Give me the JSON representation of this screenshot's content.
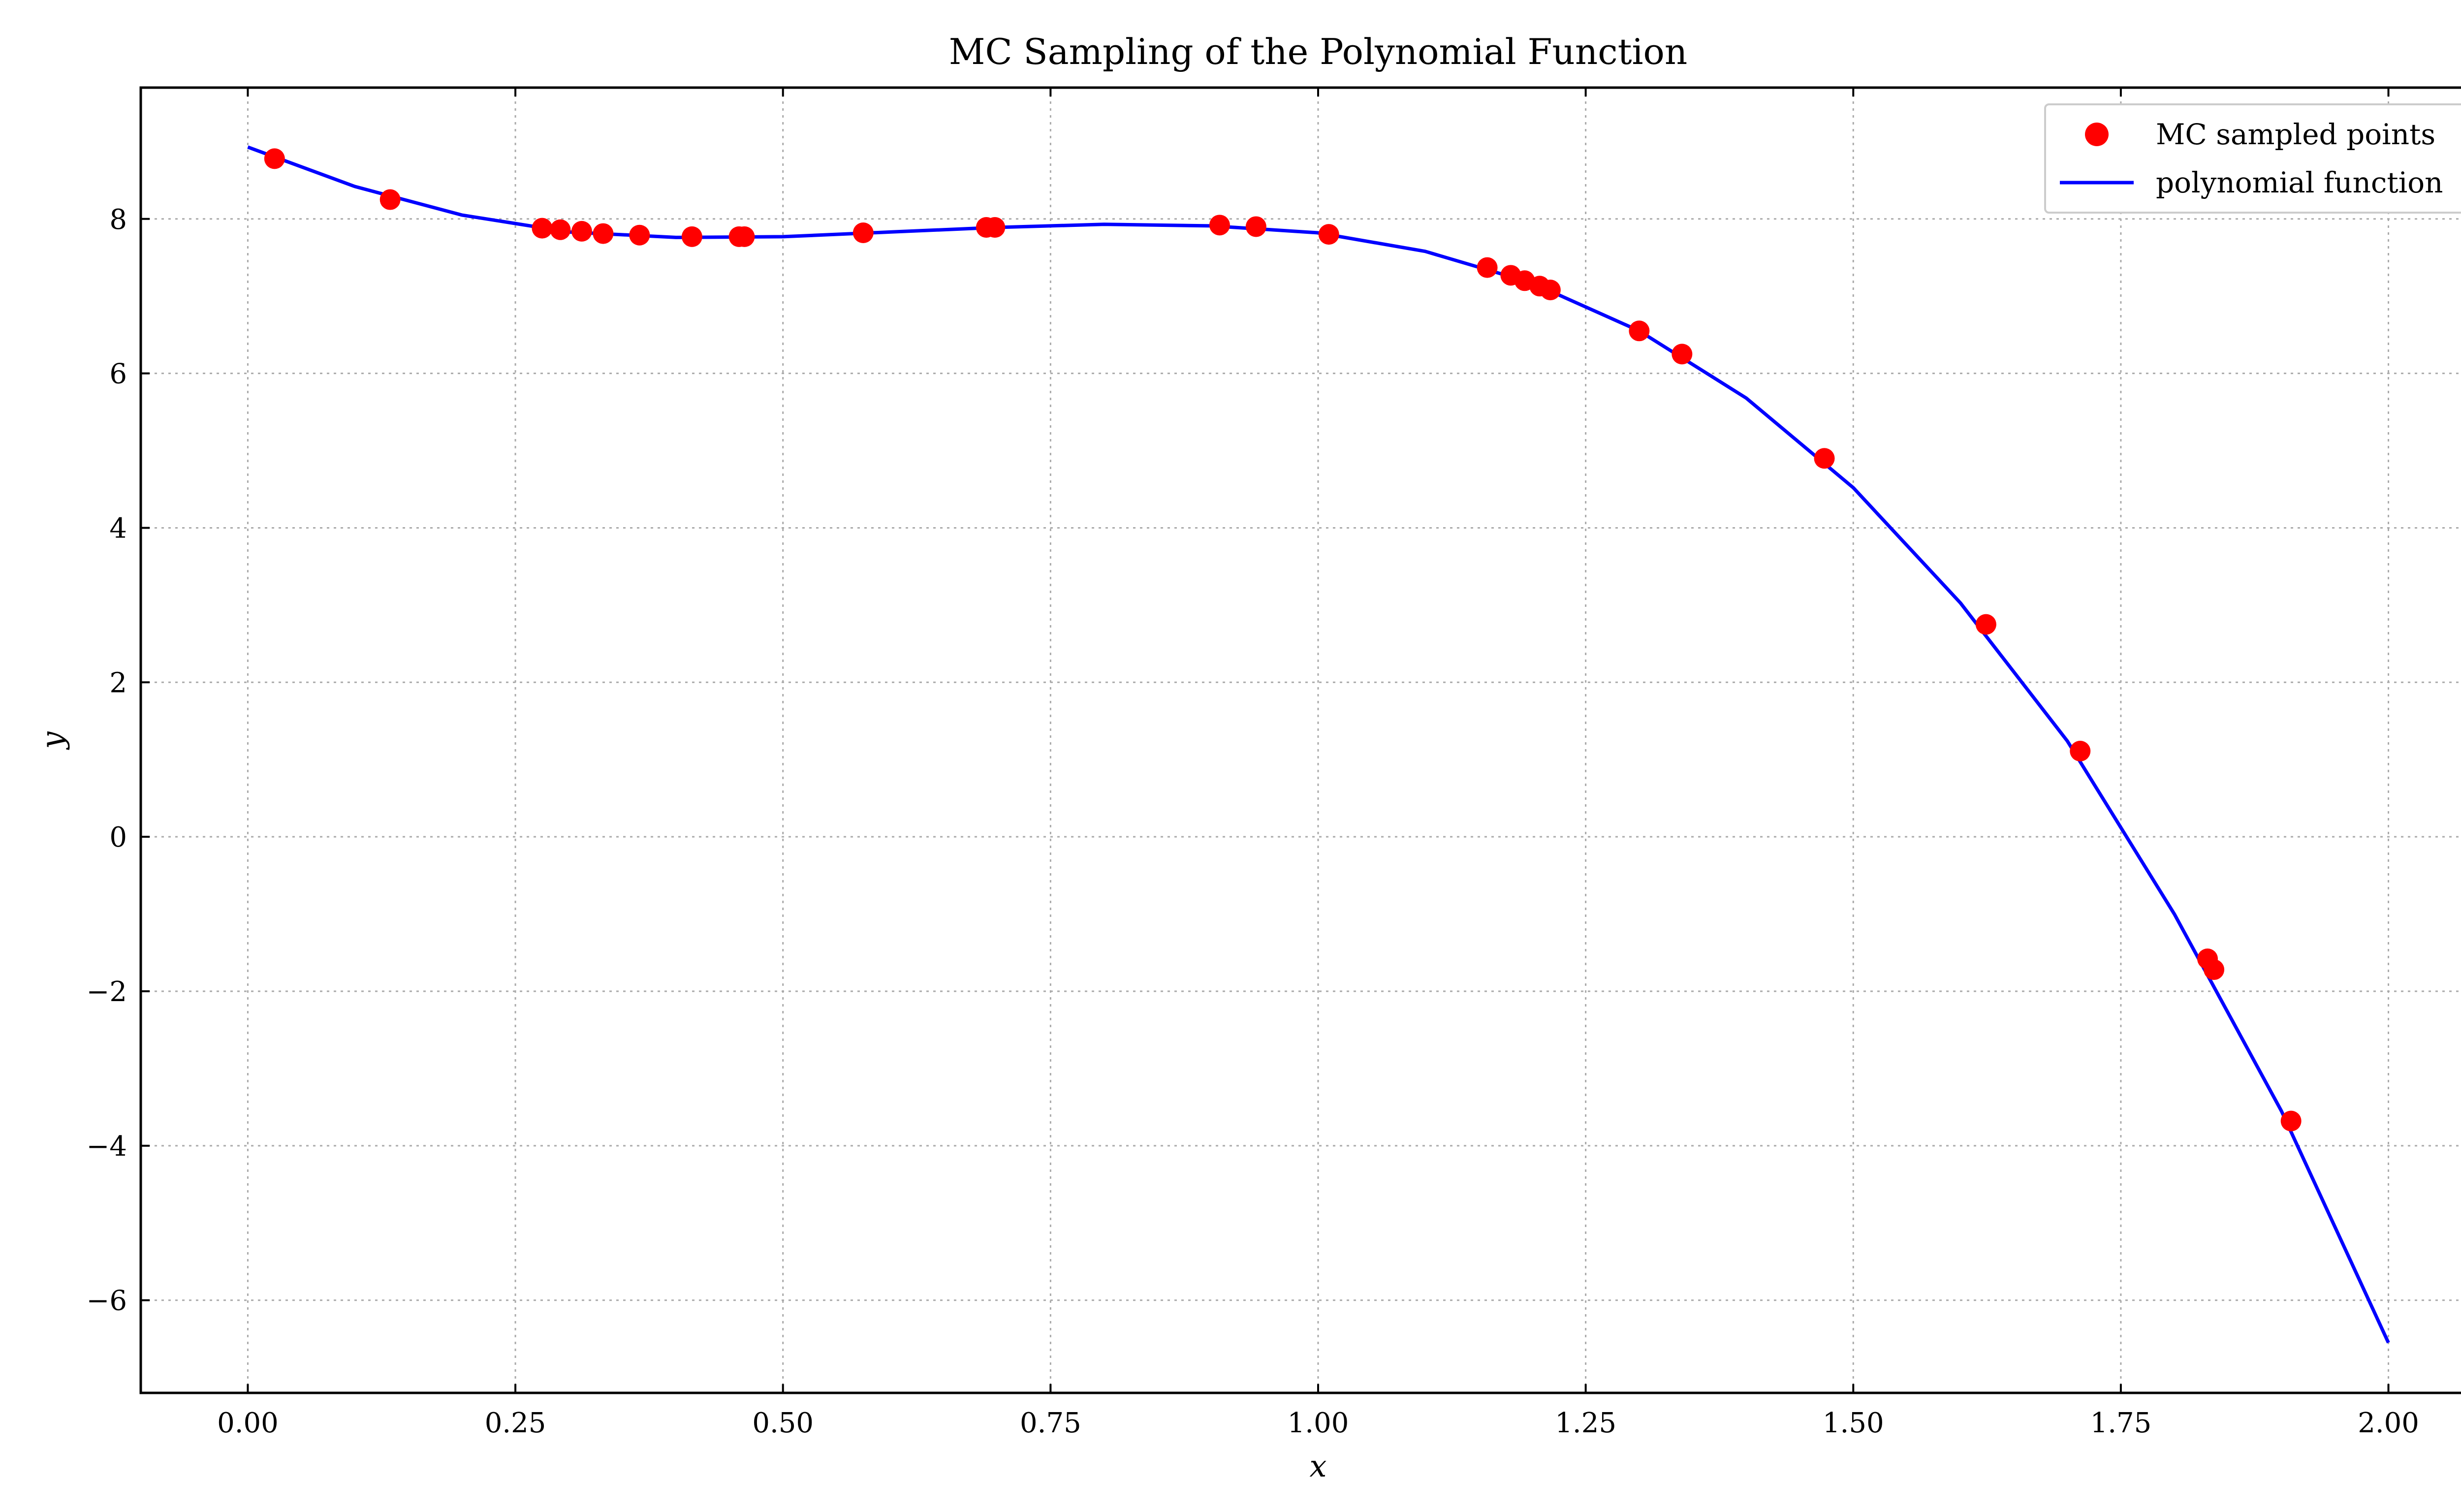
{
  "chart_data": {
    "type": "scatter",
    "title": "MC Sampling of the Polynomial Function",
    "xlabel": "x",
    "ylabel": "y",
    "xlim": [
      -0.1,
      2.1
    ],
    "ylim": [
      -7.2,
      9.7
    ],
    "grid": true,
    "legend_position": "top-right",
    "x_ticks": [
      0.0,
      0.25,
      0.5,
      0.75,
      1.0,
      1.25,
      1.5,
      1.75,
      2.0
    ],
    "x_tick_labels": [
      "0.00",
      "0.25",
      "0.50",
      "0.75",
      "1.00",
      "1.25",
      "1.50",
      "1.75",
      "2.00"
    ],
    "y_ticks": [
      -6,
      -4,
      -2,
      0,
      2,
      4,
      6,
      8
    ],
    "y_tick_labels": [
      "−6",
      "−4",
      "−2",
      "0",
      "2",
      "4",
      "6",
      "8"
    ],
    "series": [
      {
        "name": "MC sampled points",
        "kind": "scatter",
        "color": "#ff0000",
        "x": [
          0.025,
          0.133,
          0.275,
          0.292,
          0.312,
          0.332,
          0.366,
          0.415,
          0.459,
          0.464,
          0.575,
          0.69,
          0.698,
          0.908,
          0.942,
          1.01,
          1.158,
          1.18,
          1.193,
          1.207,
          1.217,
          1.3,
          1.34,
          1.473,
          1.624,
          1.712,
          1.831,
          1.837,
          1.909
        ],
        "y": [
          8.78,
          8.25,
          7.88,
          7.86,
          7.84,
          7.81,
          7.79,
          7.77,
          7.77,
          7.77,
          7.82,
          7.89,
          7.89,
          7.92,
          7.9,
          7.8,
          7.37,
          7.27,
          7.2,
          7.13,
          7.08,
          6.55,
          6.25,
          4.9,
          2.75,
          1.11,
          -1.58,
          -1.72,
          -3.68
        ]
      },
      {
        "name": "polynomial function",
        "kind": "line",
        "color": "#0000ff",
        "x": [
          0.0,
          0.1,
          0.2,
          0.3,
          0.4,
          0.5,
          0.6,
          0.7,
          0.8,
          0.9,
          1.0,
          1.1,
          1.2,
          1.3,
          1.4,
          1.5,
          1.6,
          1.7,
          1.8,
          1.9,
          2.0
        ],
        "y": [
          8.93,
          8.42,
          8.05,
          7.83,
          7.76,
          7.77,
          7.83,
          7.89,
          7.93,
          7.91,
          7.82,
          7.58,
          7.17,
          6.55,
          5.68,
          4.52,
          3.03,
          1.24,
          -1.0,
          -3.55,
          -6.55
        ]
      }
    ]
  }
}
